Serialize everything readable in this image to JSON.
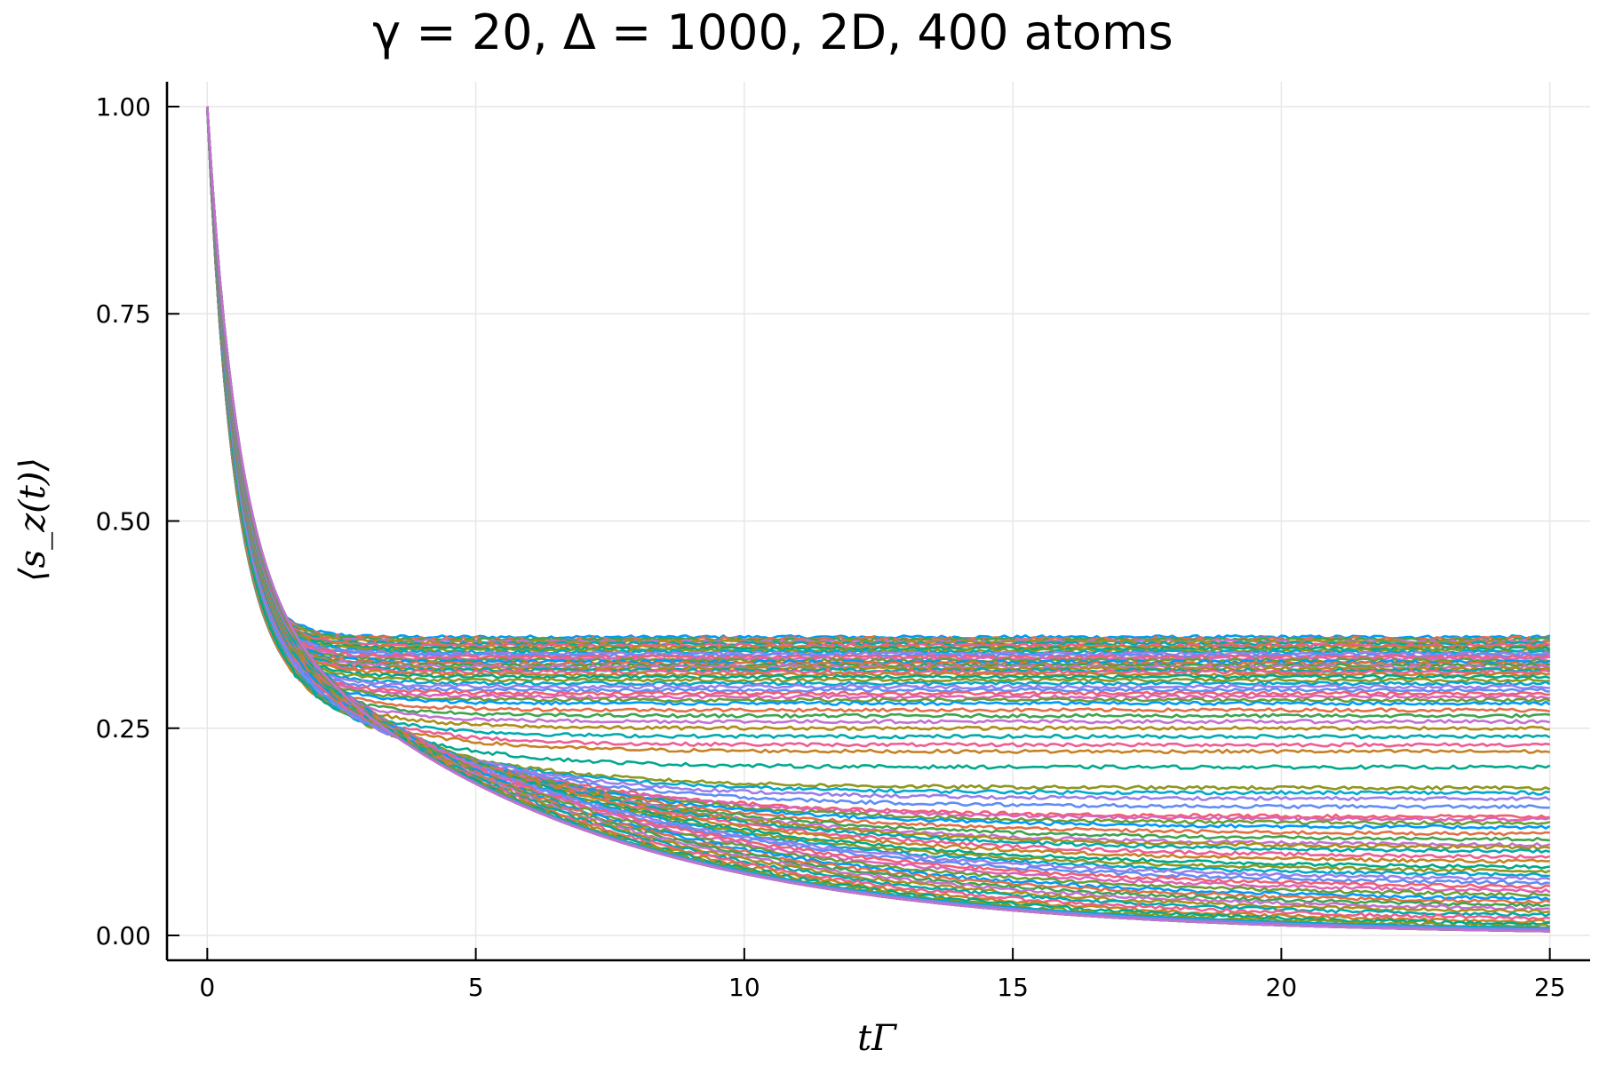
{
  "chart_data": {
    "type": "line",
    "title": "γ = 20, Δ = 1000, 2D, 400 atoms",
    "xlabel": "tΓ",
    "ylabel": "⟨s_z(t)⟩",
    "xlim": [
      -0.75,
      25.75
    ],
    "ylim": [
      -0.03,
      1.03
    ],
    "xticks": [
      0,
      5,
      10,
      15,
      20,
      25
    ],
    "xtick_labels": [
      "0",
      "5",
      "10",
      "15",
      "20",
      "25"
    ],
    "yticks": [
      0,
      0.25,
      0.5,
      0.75,
      1.0
    ],
    "ytick_labels": [
      "0.00",
      "0.25",
      "0.50",
      "0.75",
      "1.00"
    ],
    "grid": true,
    "legend": "none",
    "x_range": [
      0,
      25
    ],
    "initial_value": 1.0,
    "palette": [
      "#009AFA",
      "#E36F47",
      "#3EA44E",
      "#C371D2",
      "#AC8E18",
      "#00AAAE",
      "#ED5E93",
      "#C68225",
      "#00A98D",
      "#8E971E",
      "#00A9CD",
      "#9B7FE9",
      "#618DF6",
      "#F05F73",
      "#DC63BB",
      "#6B9E32"
    ],
    "series_note_values_are_long_time_plateaus": true,
    "series_plateaus": [
      0.36,
      0.358,
      0.357,
      0.355,
      0.354,
      0.352,
      0.35,
      0.348,
      0.346,
      0.344,
      0.342,
      0.34,
      0.338,
      0.336,
      0.334,
      0.332,
      0.33,
      0.328,
      0.326,
      0.324,
      0.322,
      0.32,
      0.318,
      0.315,
      0.312,
      0.308,
      0.304,
      0.3,
      0.296,
      0.292,
      0.288,
      0.284,
      0.28,
      0.272,
      0.265,
      0.258,
      0.25,
      0.24,
      0.23,
      0.222,
      0.203,
      0.178,
      0.172,
      0.165,
      0.155,
      0.143,
      0.14,
      0.135,
      0.13,
      0.122,
      0.115,
      0.108,
      0.105,
      0.1,
      0.093,
      0.087,
      0.08,
      0.075,
      0.07,
      0.065,
      0.06,
      0.055,
      0.05,
      0.045,
      0.04,
      0.036,
      0.032,
      0.028,
      0.024,
      0.02,
      0.016,
      0.012,
      0.009,
      0.006,
      0.004,
      0.002,
      0.001,
      0.0,
      0.0,
      0.0,
      0.0,
      0.0,
      0.0,
      0.0
    ]
  }
}
